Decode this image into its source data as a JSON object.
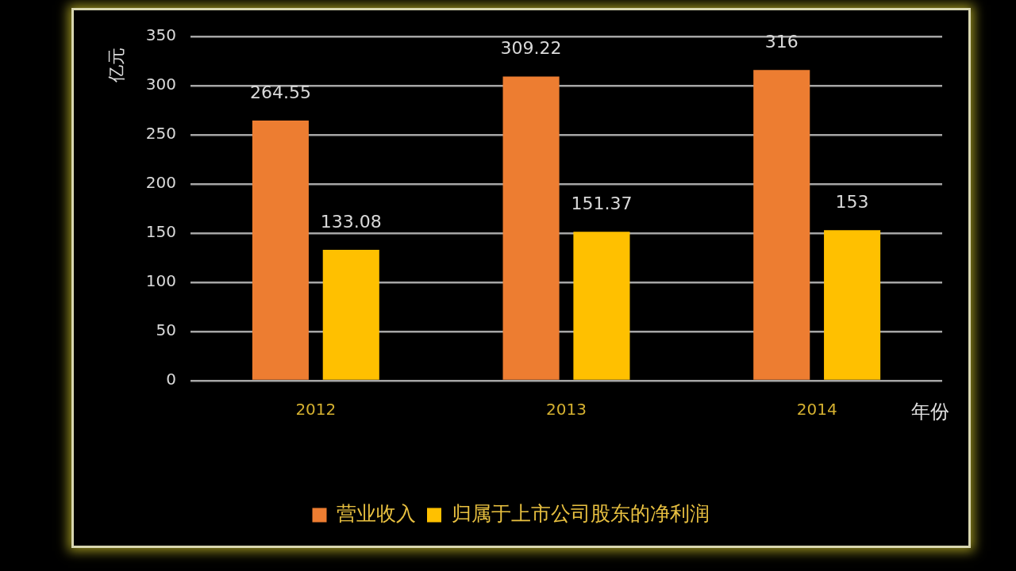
{
  "chart_data": {
    "type": "bar",
    "ylabel": "亿元",
    "xlabel": "年份",
    "categories": [
      "2012",
      "2013",
      "2014"
    ],
    "series": [
      {
        "name": "营业收入",
        "color": "#ed7d31",
        "values": [
          264.55,
          309.22,
          316
        ]
      },
      {
        "name": "归属于上市公司股东的净利润",
        "color": "#ffc000",
        "values": [
          133.08,
          151.37,
          153
        ]
      }
    ],
    "ylim": [
      0,
      350
    ],
    "yticks": [
      0,
      50,
      100,
      150,
      200,
      250,
      300,
      350
    ],
    "grid": "y",
    "legend": "bottom",
    "data_labels": true
  }
}
